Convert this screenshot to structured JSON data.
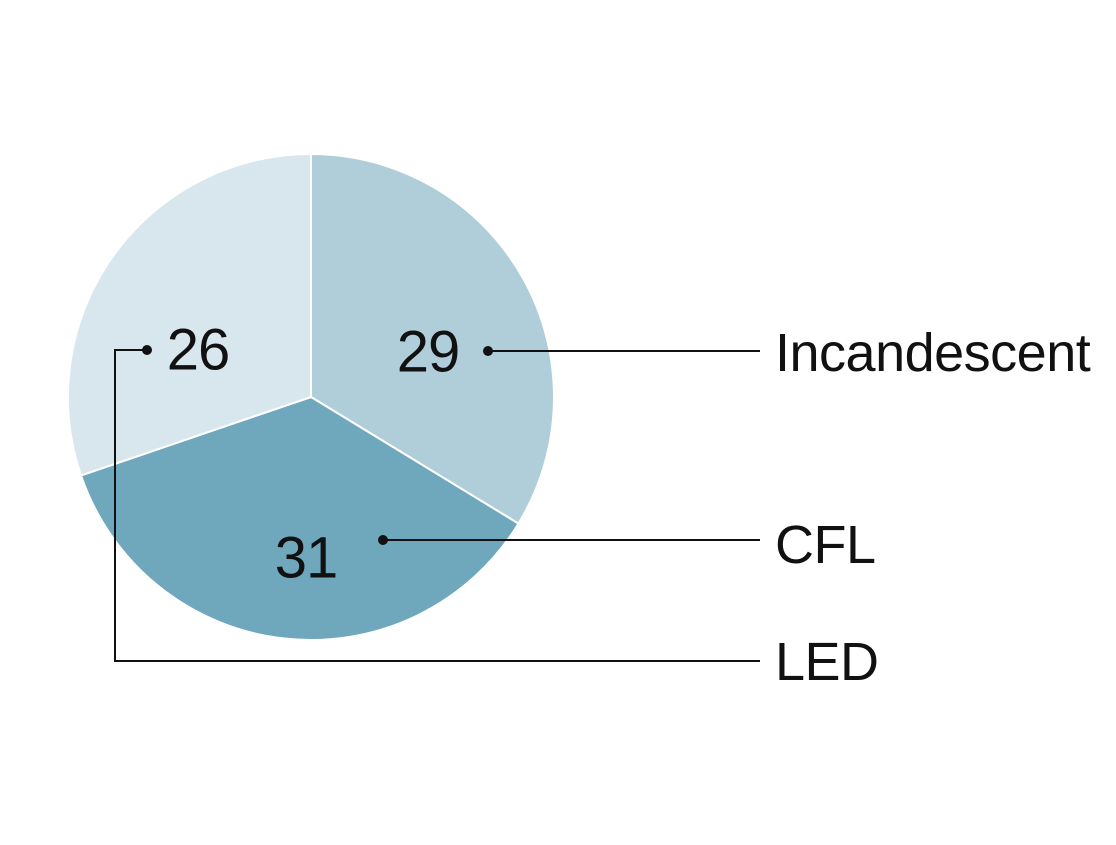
{
  "chart_data": {
    "type": "pie",
    "title": "",
    "slices": [
      {
        "name": "Incandescent",
        "value": 29,
        "color": "#b0ced9"
      },
      {
        "name": "CFL",
        "value": 31,
        "color": "#6fa7bd"
      },
      {
        "name": "LED",
        "value": 26,
        "color": "#d8e6ee"
      }
    ],
    "start_angle_deg": 0,
    "direction": "clockwise",
    "legend_placement": "right",
    "legend_style": "leader-lines"
  }
}
